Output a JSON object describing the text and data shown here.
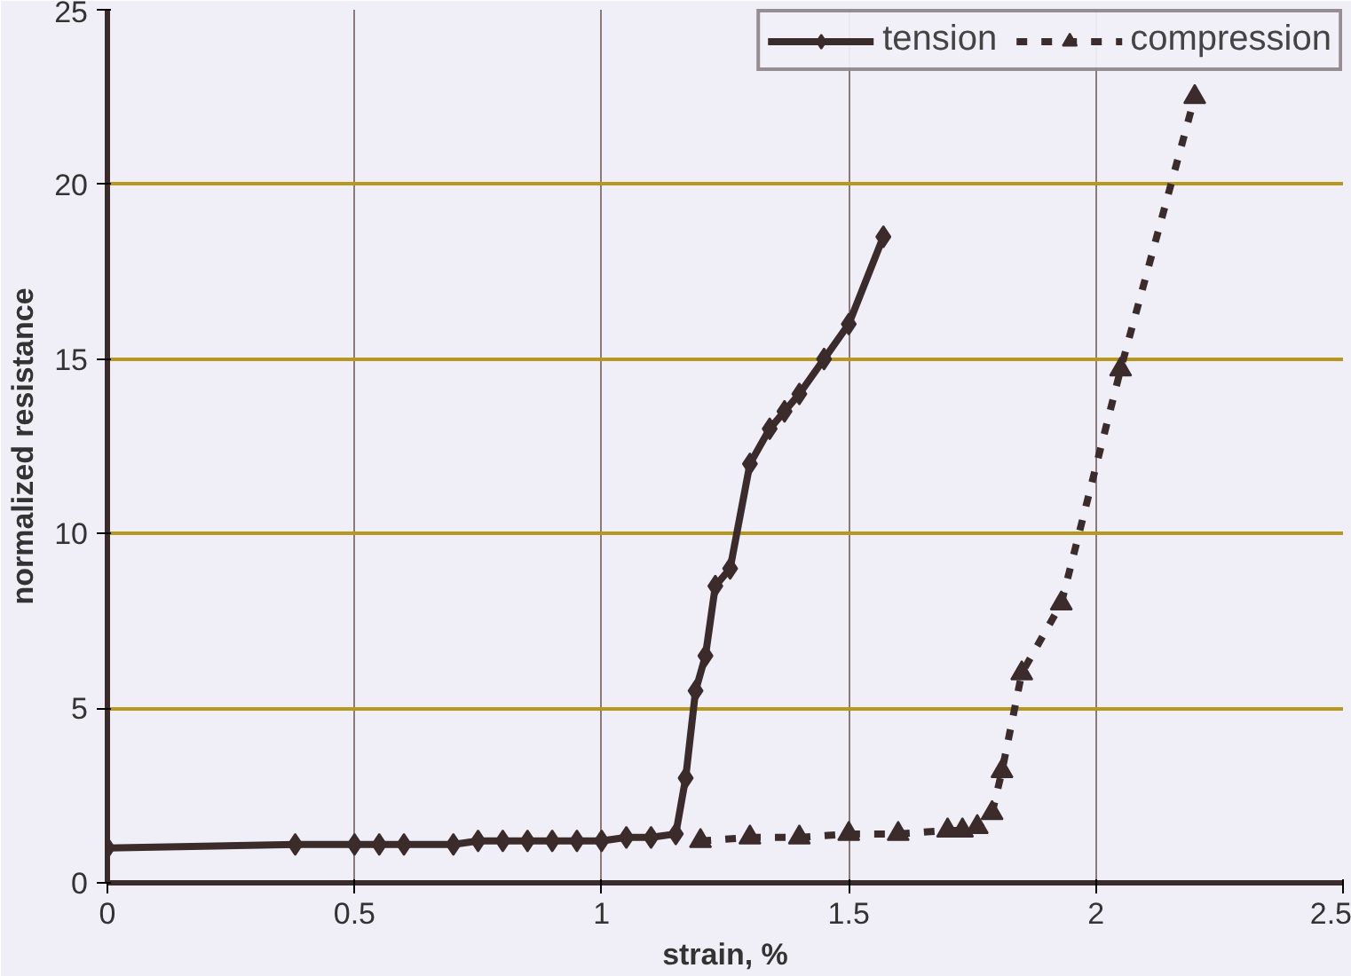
{
  "chart_data": {
    "type": "line",
    "xlabel": "strain, %",
    "ylabel": "normalized resistance",
    "xlim": [
      0,
      2.5
    ],
    "xticks": [
      0,
      0.5,
      1,
      1.5,
      2,
      2.5
    ],
    "ylim": [
      0,
      25
    ],
    "yticks": [
      0,
      5,
      10,
      15,
      20,
      25
    ],
    "grid": true,
    "legend": "top right",
    "series": [
      {
        "name": "tension",
        "color": "#3b2b2b",
        "marker": "diamond",
        "line_style": "solid",
        "x": [
          0,
          0.38,
          0.5,
          0.55,
          0.6,
          0.7,
          0.75,
          0.8,
          0.85,
          0.9,
          0.95,
          1.0,
          1.05,
          1.1,
          1.15,
          1.17,
          1.19,
          1.21,
          1.23,
          1.26,
          1.3,
          1.34,
          1.37,
          1.4,
          1.45,
          1.5,
          1.57
        ],
        "values": [
          1.0,
          1.1,
          1.1,
          1.1,
          1.1,
          1.1,
          1.2,
          1.2,
          1.2,
          1.2,
          1.2,
          1.2,
          1.3,
          1.3,
          1.4,
          3.0,
          5.5,
          6.5,
          8.5,
          9.0,
          12.0,
          13.0,
          13.5,
          14.0,
          15.0,
          16.0,
          18.5
        ]
      },
      {
        "name": "compression",
        "color": "#3b2b2b",
        "marker": "triangle",
        "line_style": "dashed",
        "x": [
          1.2,
          1.3,
          1.4,
          1.5,
          1.6,
          1.7,
          1.73,
          1.76,
          1.79,
          1.81,
          1.85,
          1.93,
          2.05,
          2.2
        ],
        "values": [
          1.2,
          1.3,
          1.3,
          1.4,
          1.4,
          1.5,
          1.5,
          1.6,
          2.0,
          3.2,
          6.0,
          8.0,
          14.7,
          22.5
        ]
      }
    ]
  }
}
